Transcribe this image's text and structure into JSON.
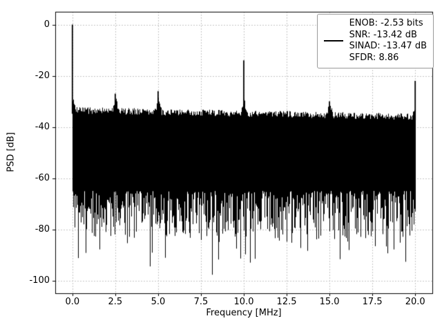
{
  "chart_data": {
    "type": "line",
    "title": "",
    "xlabel": "Frequency [MHz]",
    "ylabel": "PSD [dB]",
    "xlim": [
      -1,
      21
    ],
    "ylim": [
      -105,
      5
    ],
    "xticks": [
      0.0,
      2.5,
      5.0,
      7.5,
      10.0,
      12.5,
      15.0,
      17.5,
      20.0
    ],
    "xtick_labels": [
      "0.0",
      "2.5",
      "5.0",
      "7.5",
      "10.0",
      "12.5",
      "15.0",
      "17.5",
      "20.0"
    ],
    "yticks": [
      0,
      -20,
      -40,
      -60,
      -80,
      -100
    ],
    "ytick_labels": [
      "0",
      "-20",
      "-40",
      "-60",
      "-80",
      "-100"
    ],
    "grid": true,
    "grid_color": "#c6c6c6",
    "line_color": "#000000",
    "legend": {
      "position": "upper right",
      "entries": [
        "ENOB: -2.53 bits",
        "SNR: -13.42 dB",
        "SINAD: -13.47 dB",
        "SFDR: 8.86"
      ]
    },
    "series": [
      {
        "name": "psd",
        "kind": "noise-floor-with-tones",
        "freq_range_mhz": [
          0,
          20
        ],
        "noise_top_db": [
          -33.5,
          -36
        ],
        "noise_bottom_range_db": [
          -65,
          -99
        ],
        "seed": 7,
        "spikes": [
          {
            "x": 0.0,
            "y": 0
          },
          {
            "x": 2.5,
            "y": -27
          },
          {
            "x": 5.0,
            "y": -26
          },
          {
            "x": 10.0,
            "y": -14
          },
          {
            "x": 15.0,
            "y": -30
          },
          {
            "x": 20.0,
            "y": -22
          }
        ]
      }
    ],
    "metrics": {
      "enob_bits": -2.53,
      "snr_db": -13.42,
      "sinad_db": -13.47,
      "sfdr": 8.86
    }
  }
}
